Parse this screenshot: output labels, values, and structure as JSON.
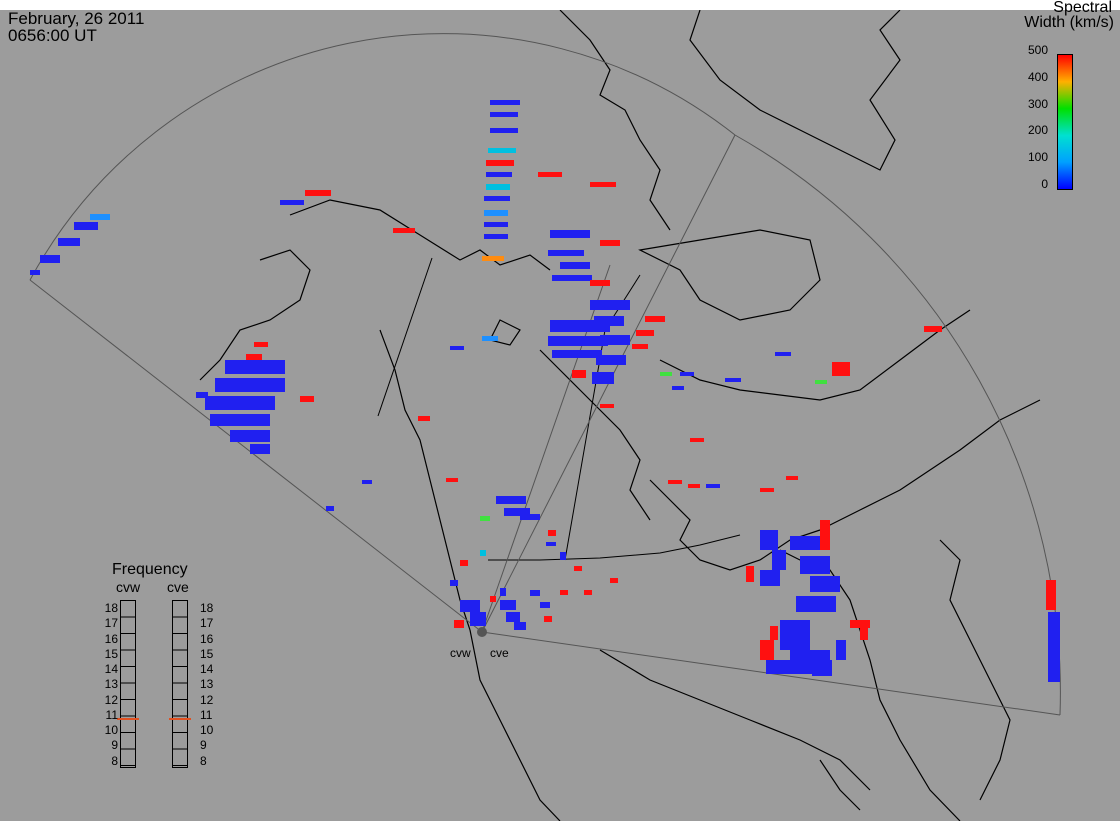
{
  "header": {
    "date": "February, 26 2011",
    "time": "0656:00 UT"
  },
  "colorbar": {
    "title_line1": "Spectral",
    "title_line2": "Width (km/s)",
    "ticks": [
      "500",
      "400",
      "300",
      "200",
      "100",
      "0"
    ],
    "colors": [
      "#0000ff",
      "#00a0ff",
      "#00e0d0",
      "#00e000",
      "#ffb000",
      "#ff0000"
    ]
  },
  "frequency": {
    "title": "Frequency",
    "radar_left": "cvw",
    "radar_right": "cve",
    "scale": [
      "18",
      "17",
      "16",
      "15",
      "14",
      "13",
      "12",
      "11",
      "10",
      "9",
      "8"
    ],
    "current_left": 10.8,
    "current_right": 10.8,
    "current_color": "#e05020"
  },
  "map": {
    "background": "#9c9c9c",
    "radar_labels": [
      "cvw",
      "cve"
    ]
  }
}
